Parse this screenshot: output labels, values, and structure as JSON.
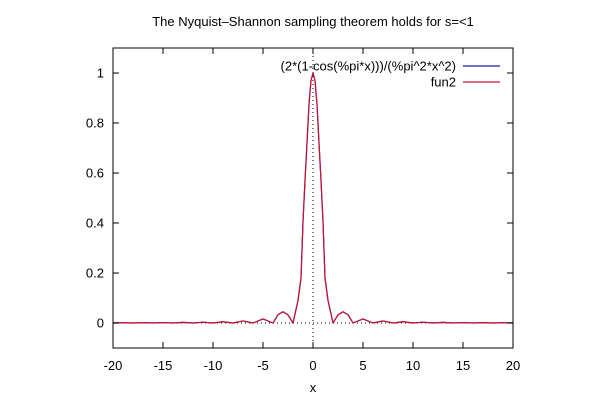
{
  "chart_data": {
    "type": "line",
    "title": "The Nyquist–Shannon sampling theorem holds for s=<1",
    "xlabel": "x",
    "ylabel": "",
    "xlim": [
      -20,
      20
    ],
    "ylim": [
      -0.1,
      1.1
    ],
    "x_ticks": [
      "-20",
      "-15",
      "-10",
      "-5",
      "0",
      "5",
      "10",
      "15",
      "20"
    ],
    "y_ticks": [
      "0",
      "0.2",
      "0.4",
      "0.6",
      "0.8",
      "1"
    ],
    "zero_axes": true,
    "grid": false,
    "legend_position": "top-right",
    "series": [
      {
        "name": "(2*(1-cos(%pi*x)))/(%pi^2*x^2)",
        "color": "#1a1aa8",
        "x": [
          -20,
          -19,
          -18,
          -17,
          -16,
          -15,
          -14,
          -13,
          -12,
          -11,
          -10,
          -9,
          -8,
          -7,
          -6,
          -5,
          -4,
          -3.5,
          -3,
          -2.5,
          -2,
          -1.5,
          -1.2,
          -1,
          -0.8,
          -0.6,
          -0.4,
          -0.2,
          0,
          0.2,
          0.4,
          0.6,
          0.8,
          1,
          1.2,
          1.5,
          2,
          2.5,
          3,
          3.5,
          4,
          5,
          6,
          7,
          8,
          9,
          10,
          11,
          12,
          13,
          14,
          15,
          16,
          17,
          18,
          19,
          20
        ],
        "y": [
          0,
          0.0011,
          0,
          0.0014,
          0,
          0.0018,
          0,
          0.0024,
          0,
          0.0033,
          0,
          0.005,
          0,
          0.0083,
          0,
          0.0162,
          0,
          0.0331,
          0.045,
          0.0324,
          0,
          0.09,
          0.18,
          0.405,
          0.57,
          0.72,
          0.875,
          0.97,
          1,
          0.97,
          0.875,
          0.72,
          0.57,
          0.405,
          0.18,
          0.09,
          0,
          0.0324,
          0.045,
          0.0331,
          0,
          0.0162,
          0,
          0.0083,
          0,
          0.005,
          0,
          0.0033,
          0,
          0.0024,
          0,
          0.0018,
          0,
          0.0014,
          0,
          0.0011,
          0
        ]
      },
      {
        "name": "fun2",
        "color": "#c8102e",
        "x": [
          -20,
          -19,
          -18,
          -17,
          -16,
          -15,
          -14,
          -13,
          -12,
          -11,
          -10,
          -9,
          -8,
          -7,
          -6,
          -5,
          -4,
          -3.5,
          -3,
          -2.5,
          -2,
          -1.5,
          -1.2,
          -1,
          -0.8,
          -0.6,
          -0.4,
          -0.2,
          0,
          0.2,
          0.4,
          0.6,
          0.8,
          1,
          1.2,
          1.5,
          2,
          2.5,
          3,
          3.5,
          4,
          5,
          6,
          7,
          8,
          9,
          10,
          11,
          12,
          13,
          14,
          15,
          16,
          17,
          18,
          19,
          20
        ],
        "y": [
          0,
          0.0011,
          0,
          0.0014,
          0,
          0.0018,
          0,
          0.0024,
          0,
          0.0033,
          0,
          0.005,
          0,
          0.0083,
          0,
          0.0162,
          0,
          0.0331,
          0.045,
          0.0324,
          0,
          0.09,
          0.18,
          0.405,
          0.57,
          0.72,
          0.875,
          0.97,
          1,
          0.97,
          0.875,
          0.72,
          0.57,
          0.405,
          0.18,
          0.09,
          0,
          0.0324,
          0.045,
          0.0331,
          0,
          0.0162,
          0,
          0.0083,
          0,
          0.005,
          0,
          0.0033,
          0,
          0.0024,
          0,
          0.0018,
          0,
          0.0014,
          0,
          0.0011,
          0
        ]
      }
    ]
  }
}
